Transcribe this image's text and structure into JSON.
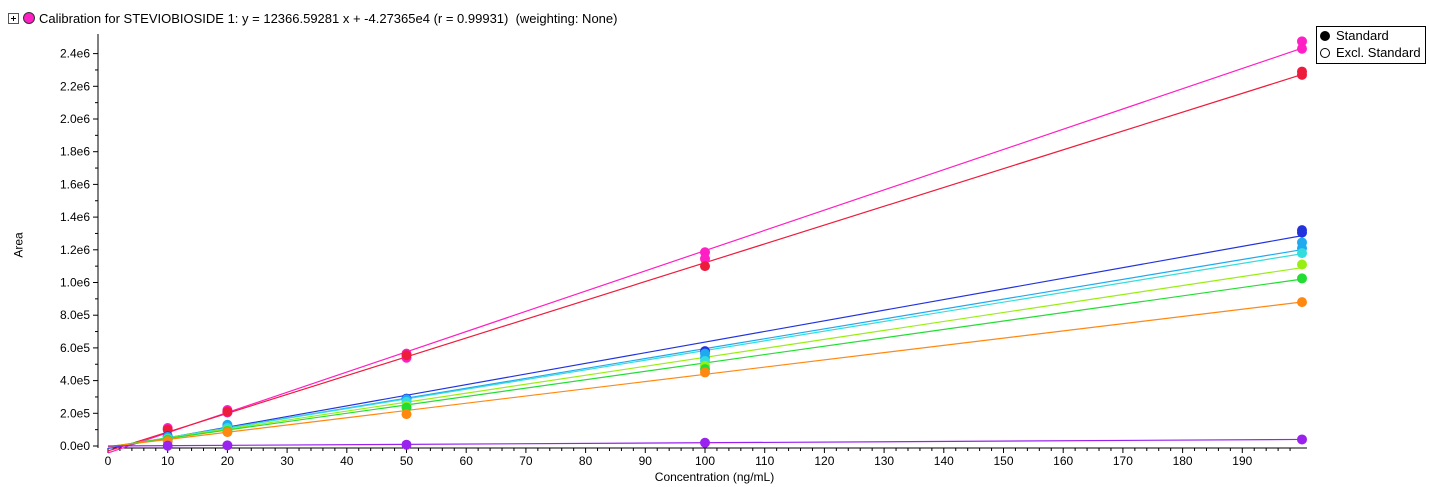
{
  "header": {
    "title": "Calibration for STEVIOBIOSIDE 1: y = 12366.59281 x + -4.27365e4 (r = 0.99931)  (weighting: None)",
    "swatch_color": "#ff1fc4",
    "expand_icon": "plus-box-icon"
  },
  "legend": {
    "items": [
      {
        "label": "Standard",
        "marker": "filled-circle"
      },
      {
        "label": "Excl. Standard",
        "marker": "open-circle"
      }
    ]
  },
  "chart_data": {
    "type": "scatter",
    "title": "Calibration for STEVIOBIOSIDE 1: y = 12366.59281 x + -4.27365e4 (r = 0.99931)  (weighting: None)",
    "xlabel": "Concentration (ng/mL)",
    "ylabel": "Area",
    "xlim": [
      0,
      200
    ],
    "ylim": [
      0,
      2500000
    ],
    "x_ticks": [
      0,
      10,
      20,
      30,
      40,
      50,
      60,
      70,
      80,
      90,
      100,
      110,
      120,
      130,
      140,
      150,
      160,
      170,
      180,
      190
    ],
    "y_ticks": [
      {
        "value": 0,
        "label": "0.0e0"
      },
      {
        "value": 200000,
        "label": "2.0e5"
      },
      {
        "value": 400000,
        "label": "4.0e5"
      },
      {
        "value": 600000,
        "label": "6.0e5"
      },
      {
        "value": 800000,
        "label": "8.0e5"
      },
      {
        "value": 1000000,
        "label": "1.0e6"
      },
      {
        "value": 1200000,
        "label": "1.2e6"
      },
      {
        "value": 1400000,
        "label": "1.4e6"
      },
      {
        "value": 1600000,
        "label": "1.6e6"
      },
      {
        "value": 1800000,
        "label": "1.8e6"
      },
      {
        "value": 2000000,
        "label": "2.0e6"
      },
      {
        "value": 2200000,
        "label": "2.2e6"
      },
      {
        "value": 2400000,
        "label": "2.4e6"
      }
    ],
    "grid": false,
    "legend_position": "top-right",
    "series": [
      {
        "color": "#ff1fc4",
        "line": [
          [
            0,
            -42736
          ],
          [
            200,
            2430582
          ]
        ],
        "points": [
          [
            10,
            110000
          ],
          [
            20,
            220000
          ],
          [
            20,
            205000
          ],
          [
            50,
            565000
          ],
          [
            50,
            540000
          ],
          [
            100,
            1185000
          ],
          [
            100,
            1145000
          ],
          [
            200,
            2475000
          ],
          [
            200,
            2430000
          ]
        ]
      },
      {
        "color": "#ee1c3c",
        "line": [
          [
            0,
            -30000
          ],
          [
            200,
            2270000
          ]
        ],
        "points": [
          [
            10,
            100000
          ],
          [
            20,
            210000
          ],
          [
            50,
            555000
          ],
          [
            100,
            1100000
          ],
          [
            200,
            2290000
          ],
          [
            200,
            2270000
          ]
        ]
      },
      {
        "color": "#2233dd",
        "line": [
          [
            0,
            -15000
          ],
          [
            200,
            1285000
          ]
        ],
        "points": [
          [
            10,
            60000
          ],
          [
            20,
            120000
          ],
          [
            50,
            290000
          ],
          [
            100,
            580000
          ],
          [
            200,
            1320000
          ],
          [
            200,
            1305000
          ]
        ]
      },
      {
        "color": "#1eaaf0",
        "line": [
          [
            0,
            -10000
          ],
          [
            200,
            1200000
          ]
        ],
        "points": [
          [
            10,
            55000
          ],
          [
            20,
            130000
          ],
          [
            20,
            115000
          ],
          [
            50,
            285000
          ],
          [
            100,
            565000
          ],
          [
            100,
            540000
          ],
          [
            200,
            1245000
          ],
          [
            200,
            1210000
          ]
        ]
      },
      {
        "color": "#33dddd",
        "line": [
          [
            0,
            -8000
          ],
          [
            200,
            1175000
          ]
        ],
        "points": [
          [
            10,
            45000
          ],
          [
            20,
            110000
          ],
          [
            50,
            270000
          ],
          [
            100,
            520000
          ],
          [
            200,
            1180000
          ]
        ]
      },
      {
        "color": "#99ee11",
        "line": [
          [
            0,
            -6000
          ],
          [
            200,
            1090000
          ]
        ],
        "points": [
          [
            10,
            40000
          ],
          [
            20,
            95000
          ],
          [
            50,
            245000
          ],
          [
            100,
            490000
          ],
          [
            200,
            1110000
          ]
        ]
      },
      {
        "color": "#22dd33",
        "line": [
          [
            0,
            -5000
          ],
          [
            200,
            1020000
          ]
        ],
        "points": [
          [
            10,
            38000
          ],
          [
            20,
            92000
          ],
          [
            50,
            235000
          ],
          [
            100,
            470000
          ],
          [
            200,
            1025000
          ]
        ]
      },
      {
        "color": "#ff8811",
        "line": [
          [
            0,
            -4000
          ],
          [
            200,
            880000
          ]
        ],
        "points": [
          [
            10,
            30000
          ],
          [
            20,
            85000
          ],
          [
            50,
            195000
          ],
          [
            100,
            450000
          ],
          [
            200,
            880000
          ]
        ]
      },
      {
        "color": "#9922ee",
        "line": [
          [
            0,
            0
          ],
          [
            200,
            40000
          ]
        ],
        "points": [
          [
            10,
            2000
          ],
          [
            20,
            4000
          ],
          [
            50,
            8000
          ],
          [
            100,
            20000
          ],
          [
            200,
            40000
          ]
        ]
      }
    ]
  }
}
